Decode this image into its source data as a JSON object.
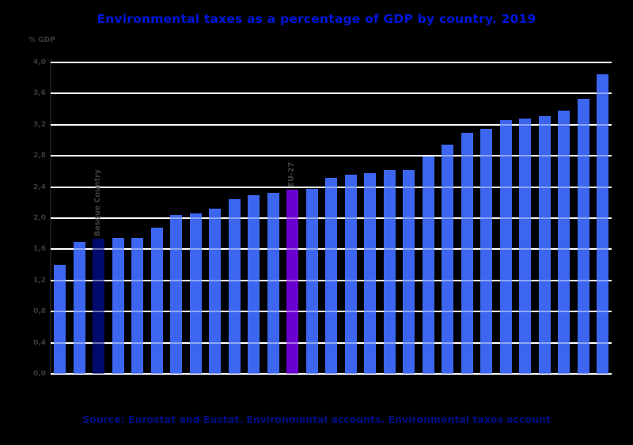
{
  "figure": {
    "title": "Environmental taxes as a percentage of GDP by country. 2019",
    "unit_label": "% GDP",
    "source": "Source: Eurostat and Eustat. Environmental accounts. Environmental taxes account"
  },
  "colors": {
    "background": "#000000",
    "title_text": "#0017d8",
    "source_text": "#000e82",
    "tick_text": "#3b3b3b",
    "annotation_text": "#3e3e3e",
    "gridline": "#ffffff",
    "bar": "#3c66f0",
    "basque_bar": "#000b6e",
    "eu27_bar": "#6a00cf"
  },
  "chart_data": {
    "type": "bar",
    "title": "Environmental taxes as a percentage of GDP by country. 2019",
    "xlabel": "",
    "ylabel": "% GDP",
    "ylim": [
      0,
      4.0
    ],
    "ytick_step": 0.4,
    "ytick_labels": [
      "0,0",
      "0,4",
      "0,8",
      "1,2",
      "1,6",
      "2,0",
      "2,4",
      "2,8",
      "3,2",
      "3,6",
      "4,0"
    ],
    "grid": "horizontal white gridlines on black plot background",
    "legend": "none",
    "x_tick_labels_visible": false,
    "values": [
      1.4,
      1.7,
      1.74,
      1.75,
      1.75,
      1.88,
      2.04,
      2.06,
      2.12,
      2.24,
      2.29,
      2.32,
      2.37,
      2.38,
      2.52,
      2.56,
      2.58,
      2.62,
      2.62,
      2.79,
      2.94,
      3.1,
      3.15,
      3.26,
      3.28,
      3.31,
      3.38,
      3.53,
      3.85
    ],
    "annotations": [
      {
        "index": 2,
        "text": "Basque Country",
        "rotation": 90,
        "bar_color_key": "basque_bar"
      },
      {
        "index": 12,
        "text": "EU-27",
        "rotation": 90,
        "bar_color_key": "eu27_bar"
      }
    ]
  }
}
